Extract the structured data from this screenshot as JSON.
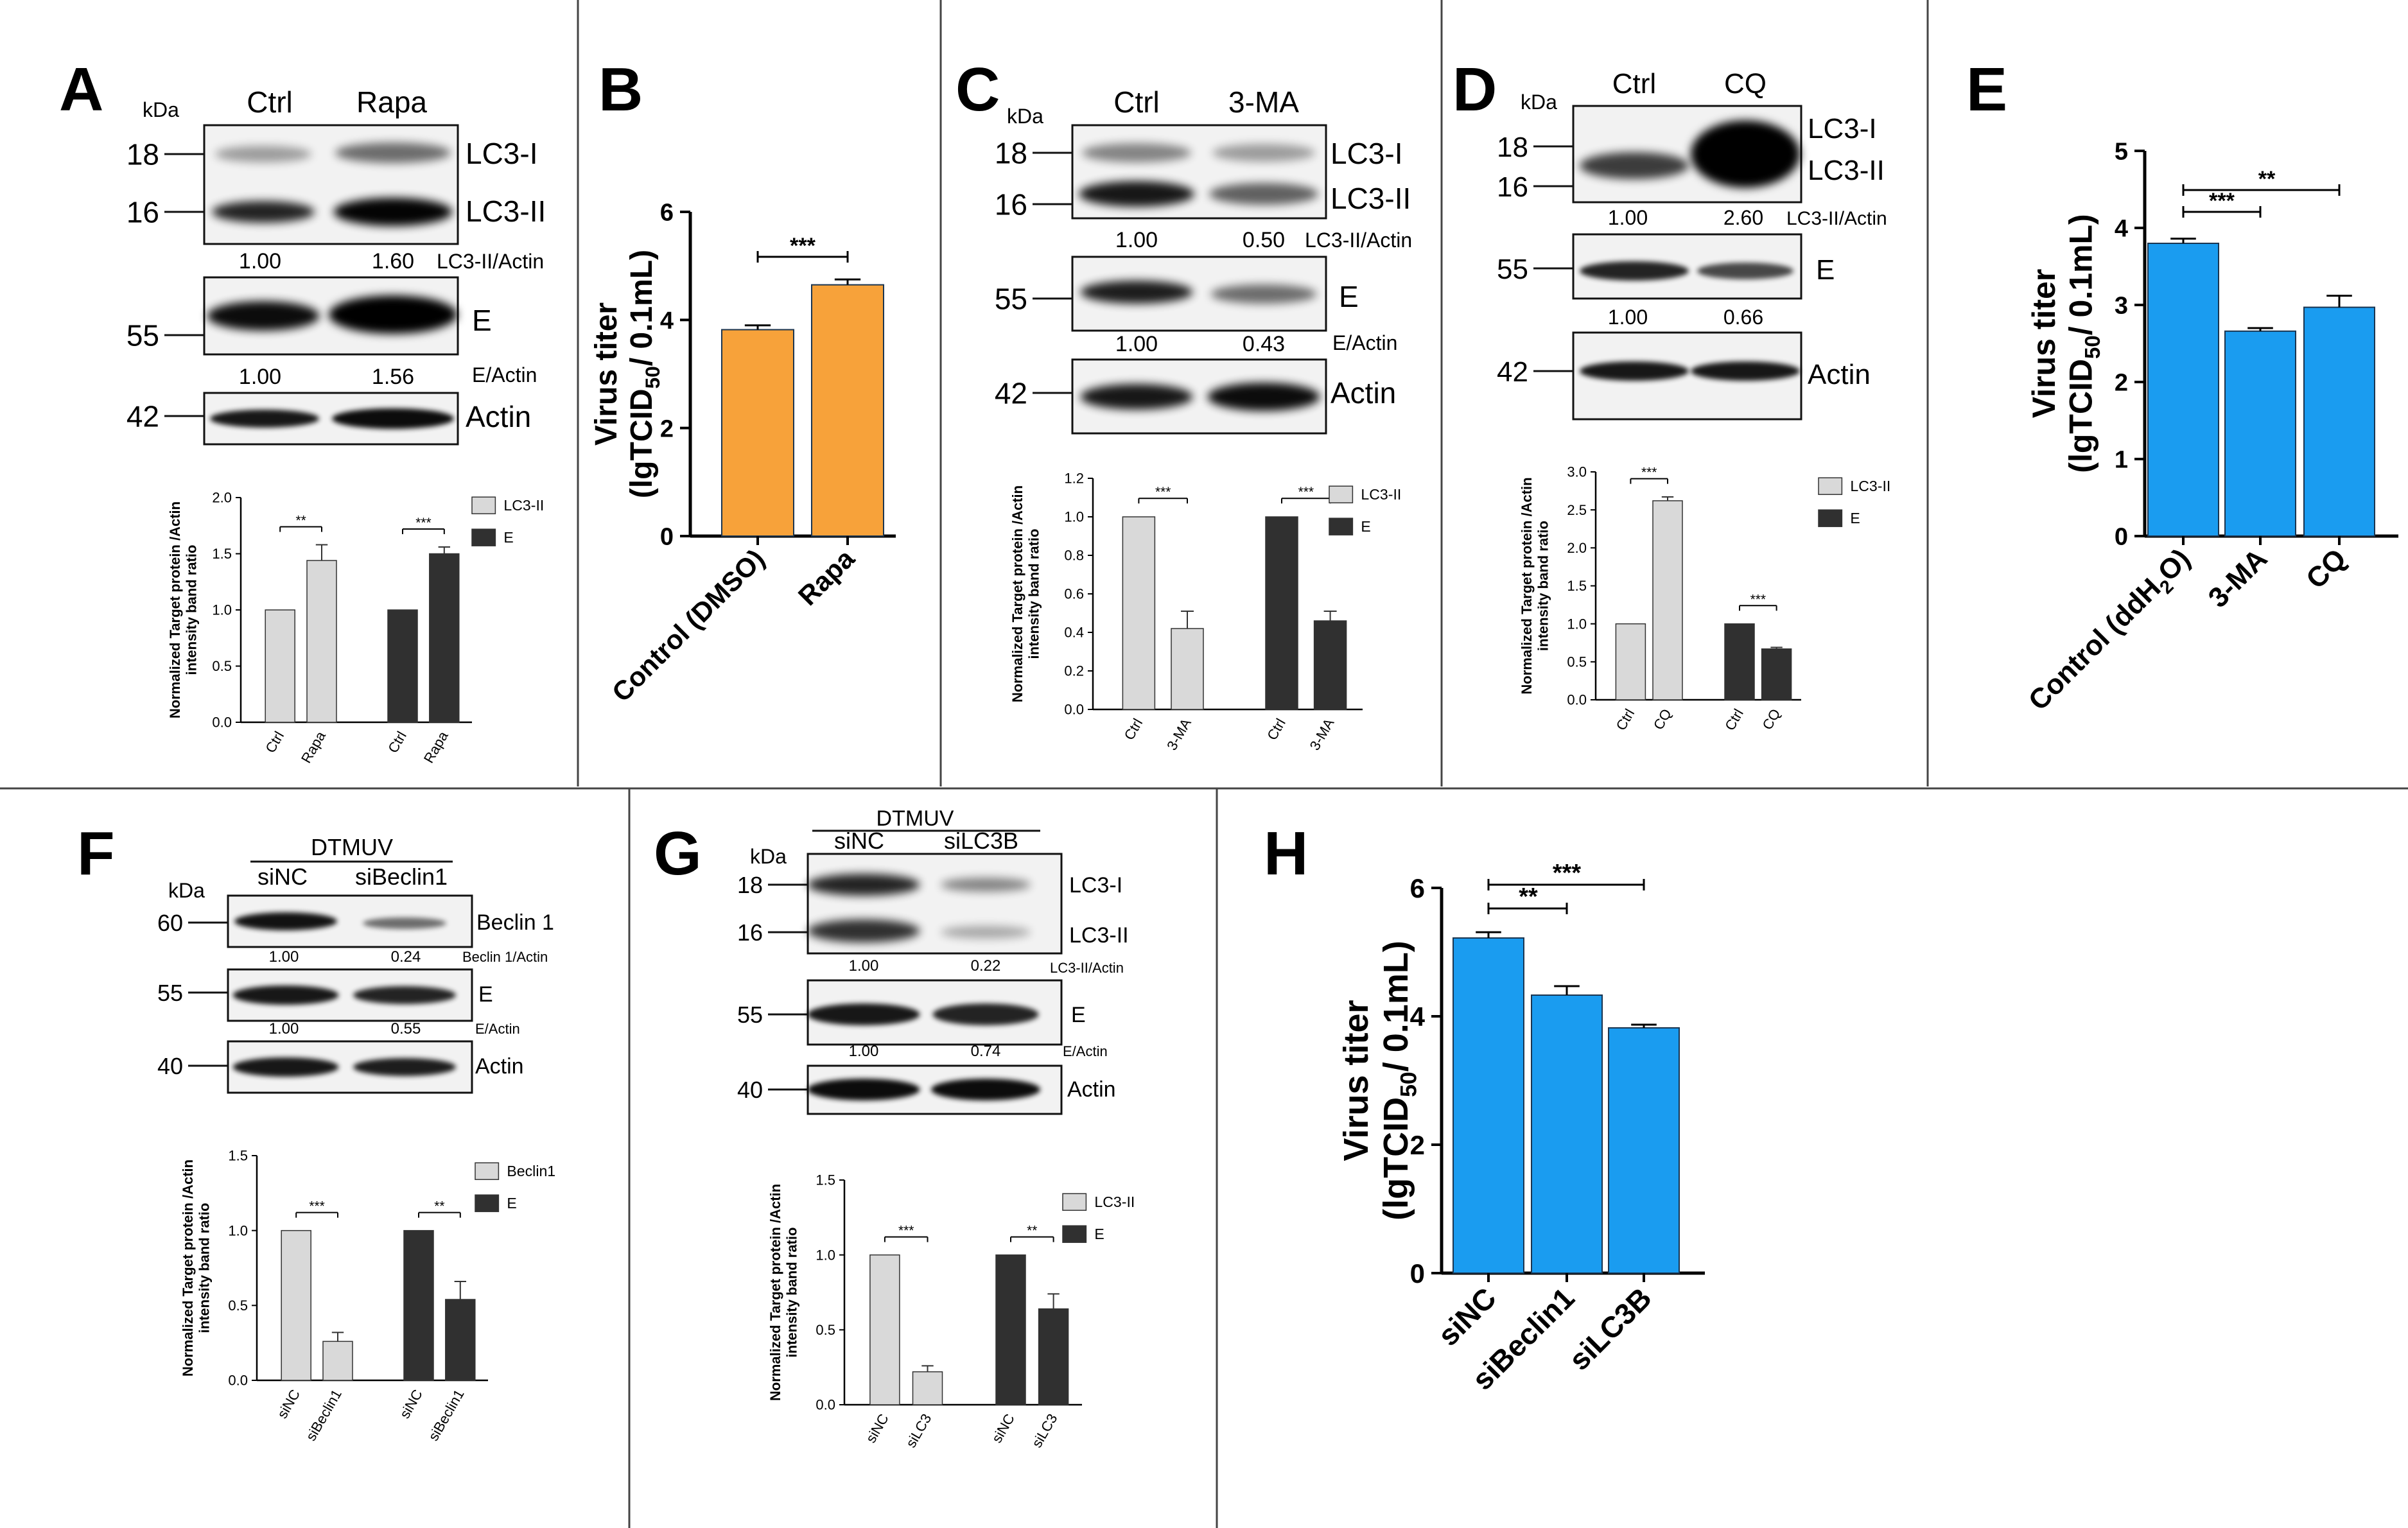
{
  "panels": {
    "A": {
      "label": "A",
      "kda": "kDa",
      "lanes": [
        "Ctrl",
        "Rapa"
      ],
      "markers": [
        "18",
        "16",
        "55",
        "42"
      ],
      "bands": [
        "LC3-I",
        "LC3-II",
        "E",
        "Actin"
      ],
      "ratio_rows": [
        {
          "values": [
            "1.00",
            "1.60"
          ],
          "label": "LC3-II/Actin"
        },
        {
          "values": [
            "1.00",
            "1.56"
          ],
          "label": "E/Actin"
        }
      ]
    },
    "B": {
      "label": "B"
    },
    "C": {
      "label": "C",
      "kda": "kDa",
      "lanes": [
        "Ctrl",
        "3-MA"
      ],
      "markers": [
        "18",
        "16",
        "55",
        "42"
      ],
      "bands": [
        "LC3-I",
        "LC3-II",
        "E",
        "Actin"
      ],
      "ratio_rows": [
        {
          "values": [
            "1.00",
            "0.50"
          ],
          "label": "LC3-II/Actin"
        },
        {
          "values": [
            "1.00",
            "0.43"
          ],
          "label": "E/Actin"
        }
      ]
    },
    "D": {
      "label": "D",
      "kda": "kDa",
      "lanes": [
        "Ctrl",
        "CQ"
      ],
      "markers": [
        "18",
        "16",
        "55",
        "42"
      ],
      "bands": [
        "LC3-I",
        "LC3-II",
        "E",
        "Actin"
      ],
      "ratio_rows": [
        {
          "values": [
            "1.00",
            "2.60"
          ],
          "label": "LC3-II/Actin"
        },
        {
          "values": [
            "1.00",
            "0.66"
          ],
          "label": ""
        }
      ]
    },
    "E": {
      "label": "E"
    },
    "F": {
      "label": "F",
      "kda": "kDa",
      "group": "DTMUV",
      "lanes": [
        "siNC",
        "siBeclin1"
      ],
      "markers": [
        "60",
        "55",
        "40"
      ],
      "bands": [
        "Beclin 1",
        "E",
        "Actin"
      ],
      "ratio_rows": [
        {
          "values": [
            "1.00",
            "0.24"
          ],
          "label": "Beclin 1/Actin"
        },
        {
          "values": [
            "1.00",
            "0.55"
          ],
          "label": "E/Actin"
        }
      ]
    },
    "G": {
      "label": "G",
      "kda": "kDa",
      "group": "DTMUV",
      "lanes": [
        "siNC",
        "siLC3B"
      ],
      "markers": [
        "18",
        "16",
        "55",
        "40"
      ],
      "bands": [
        "LC3-I",
        "LC3-II",
        "E",
        "Actin"
      ],
      "ratio_rows": [
        {
          "values": [
            "1.00",
            "0.22"
          ],
          "label": "LC3-II/Actin"
        },
        {
          "values": [
            "1.00",
            "0.74"
          ],
          "label": "E/Actin"
        }
      ]
    },
    "H": {
      "label": "H"
    }
  },
  "chart_data": [
    {
      "id": "A-quant",
      "type": "bar",
      "categories": [
        "Ctrl",
        "Rapa",
        "Ctrl",
        "Rapa"
      ],
      "series": [
        {
          "name": "LC3-II",
          "color": "#d9d9d9",
          "values": [
            1.0,
            1.44,
            null,
            null
          ],
          "errors": [
            0,
            0.14,
            0,
            0
          ]
        },
        {
          "name": "E",
          "color": "#303030",
          "values": [
            null,
            null,
            1.0,
            1.5
          ],
          "errors": [
            0,
            0,
            0,
            0.06
          ]
        }
      ],
      "ylabel": "Normalized Target protein /Actin intensity band ratio",
      "ylim": [
        0,
        2.0
      ],
      "yticks": [
        "0.0",
        "0.5",
        "1.0",
        "1.5",
        "2.0"
      ],
      "significance": [
        {
          "between": [
            0,
            1
          ],
          "label": "**"
        },
        {
          "between": [
            2,
            3
          ],
          "label": "***"
        }
      ],
      "legend": "right"
    },
    {
      "id": "B-titer",
      "type": "bar",
      "categories": [
        "Control (DMSO)",
        "Rapa"
      ],
      "values": [
        3.82,
        4.65
      ],
      "errors": [
        0.08,
        0.1
      ],
      "color": "#f7a23a",
      "ylabel": "Virus titer (lgTCID50/ 0.1mL)",
      "ylim": [
        0,
        6
      ],
      "yticks": [
        "0",
        "2",
        "4",
        "6"
      ],
      "significance": [
        {
          "between": [
            0,
            1
          ],
          "label": "***"
        }
      ]
    },
    {
      "id": "C-quant",
      "type": "bar",
      "categories": [
        "Ctrl",
        "3-MA",
        "Ctrl",
        "3-MA"
      ],
      "series": [
        {
          "name": "LC3-II",
          "color": "#d9d9d9",
          "values": [
            1.0,
            0.42,
            null,
            null
          ],
          "errors": [
            0,
            0.09,
            0,
            0
          ]
        },
        {
          "name": "E",
          "color": "#303030",
          "values": [
            null,
            null,
            1.0,
            0.46
          ],
          "errors": [
            0,
            0,
            0,
            0.05
          ]
        }
      ],
      "ylabel": "Normalized Target protein /Actin intensity band ratio",
      "ylim": [
        0,
        1.2
      ],
      "yticks": [
        "0.0",
        "0.2",
        "0.4",
        "0.6",
        "0.8",
        "1.0",
        "1.2"
      ],
      "significance": [
        {
          "between": [
            0,
            1
          ],
          "label": "***"
        },
        {
          "between": [
            2,
            3
          ],
          "label": "***"
        }
      ],
      "legend": "right"
    },
    {
      "id": "D-quant",
      "type": "bar",
      "categories": [
        "Ctrl",
        "CQ",
        "Ctrl",
        "CQ"
      ],
      "series": [
        {
          "name": "LC3-II",
          "color": "#d9d9d9",
          "values": [
            1.0,
            2.62,
            null,
            null
          ],
          "errors": [
            0,
            0.05,
            0,
            0
          ]
        },
        {
          "name": "E",
          "color": "#303030",
          "values": [
            null,
            null,
            1.0,
            0.67
          ],
          "errors": [
            0,
            0,
            0,
            0.02
          ]
        }
      ],
      "ylabel": "Normalized Target protein /Actin intensity band ratio",
      "ylim": [
        0,
        3.0
      ],
      "yticks": [
        "0.0",
        "0.5",
        "1.0",
        "1.5",
        "2.0",
        "2.5",
        "3.0"
      ],
      "significance": [
        {
          "between": [
            0,
            1
          ],
          "label": "***"
        },
        {
          "between": [
            2,
            3
          ],
          "label": "***"
        }
      ],
      "legend": "right"
    },
    {
      "id": "E-titer",
      "type": "bar",
      "categories": [
        "Control (ddH2O)",
        "3-MA",
        "CQ"
      ],
      "values": [
        3.8,
        2.66,
        2.97
      ],
      "errors": [
        0.06,
        0.04,
        0.15
      ],
      "color": "#1a9cf0",
      "ylabel": "Virus titer (lgTCID50/ 0.1mL)",
      "ylim": [
        0,
        5
      ],
      "yticks": [
        "0",
        "1",
        "2",
        "3",
        "4",
        "5"
      ],
      "significance": [
        {
          "between": [
            0,
            1
          ],
          "label": "***"
        },
        {
          "between": [
            0,
            2
          ],
          "label": "**"
        }
      ]
    },
    {
      "id": "F-quant",
      "type": "bar",
      "categories": [
        "siNC",
        "siBeclin1",
        "siNC",
        "siBeclin1"
      ],
      "series": [
        {
          "name": "Beclin1",
          "color": "#d9d9d9",
          "values": [
            1.0,
            0.26,
            null,
            null
          ],
          "errors": [
            0,
            0.06,
            0,
            0
          ]
        },
        {
          "name": "E",
          "color": "#303030",
          "values": [
            null,
            null,
            1.0,
            0.54
          ],
          "errors": [
            0,
            0,
            0,
            0.12
          ]
        }
      ],
      "ylabel": "Normalized Target protein /Actin intensity band ratio",
      "ylim": [
        0,
        1.5
      ],
      "yticks": [
        "0.0",
        "0.5",
        "1.0",
        "1.5"
      ],
      "significance": [
        {
          "between": [
            0,
            1
          ],
          "label": "***"
        },
        {
          "between": [
            2,
            3
          ],
          "label": "**"
        }
      ],
      "legend": "right"
    },
    {
      "id": "G-quant",
      "type": "bar",
      "categories": [
        "siNC",
        "siLC3",
        "siNC",
        "siLC3"
      ],
      "series": [
        {
          "name": "LC3-II",
          "color": "#d9d9d9",
          "values": [
            1.0,
            0.22,
            null,
            null
          ],
          "errors": [
            0,
            0.04,
            0,
            0
          ]
        },
        {
          "name": "E",
          "color": "#303030",
          "values": [
            null,
            null,
            1.0,
            0.64
          ],
          "errors": [
            0,
            0,
            0,
            0.1
          ]
        }
      ],
      "ylabel": "Normalized Target protein /Actin intensity band ratio",
      "ylim": [
        0,
        1.5
      ],
      "yticks": [
        "0.0",
        "0.5",
        "1.0",
        "1.5"
      ],
      "significance": [
        {
          "between": [
            0,
            1
          ],
          "label": "***"
        },
        {
          "between": [
            2,
            3
          ],
          "label": "**"
        }
      ],
      "legend": "right"
    },
    {
      "id": "H-titer",
      "type": "bar",
      "categories": [
        "siNC",
        "siBeclin1",
        "siLC3B"
      ],
      "values": [
        5.22,
        4.33,
        3.82
      ],
      "errors": [
        0.09,
        0.14,
        0.05
      ],
      "color": "#1a9cf0",
      "ylabel": "Virus titer (lgTCID50/ 0.1mL)",
      "ylim": [
        0,
        6
      ],
      "yticks": [
        "0",
        "2",
        "4",
        "6"
      ],
      "significance": [
        {
          "between": [
            0,
            1
          ],
          "label": "**"
        },
        {
          "between": [
            0,
            2
          ],
          "label": "***"
        }
      ]
    }
  ]
}
